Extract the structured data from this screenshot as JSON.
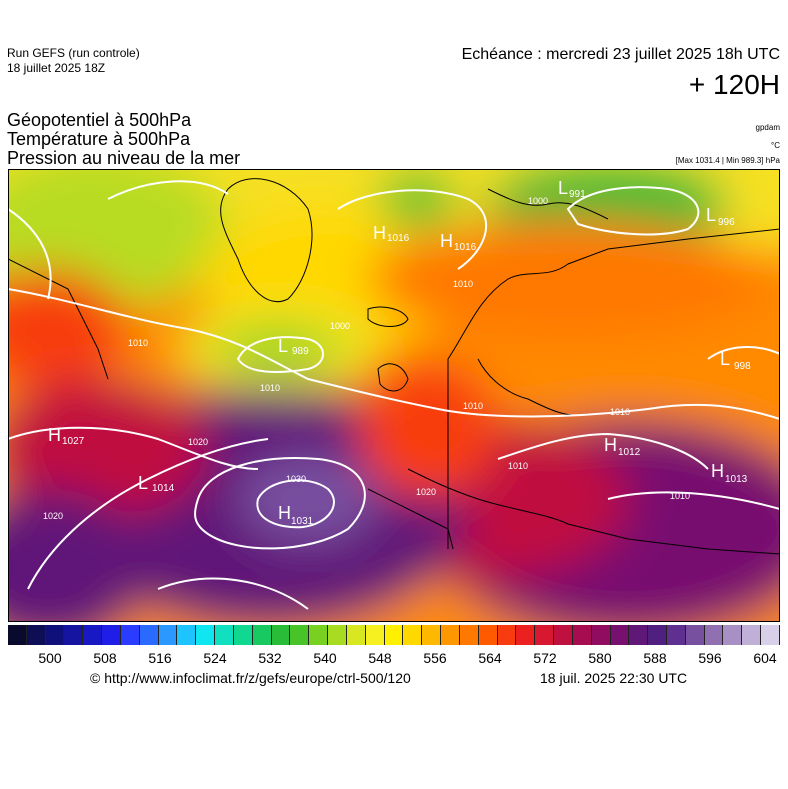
{
  "header": {
    "run_label": "Run GEFS (run controle)",
    "run_date": "18 juillet 2025 18Z",
    "echeance": "Echéance : mercredi 23 juillet 2025 18h UTC",
    "lead_time": "+ 120H"
  },
  "parameters": {
    "geopotential": "Géopotentiel à 500hPa",
    "temperature": "Température à 500hPa",
    "pressure": "Pression au niveau de la mer"
  },
  "units": {
    "geopotential": "gpdam",
    "temperature": "°C",
    "pressure": "[Max 1031.4 | Min 989.3] hPa"
  },
  "map": {
    "pressure_centers": [
      {
        "type": "H",
        "value": "1016"
      },
      {
        "type": "H",
        "value": "1016"
      },
      {
        "type": "L",
        "value": "991"
      },
      {
        "type": "L",
        "value": "996"
      },
      {
        "type": "L",
        "value": "989"
      },
      {
        "type": "L",
        "value": "998"
      },
      {
        "type": "H",
        "value": "1027"
      },
      {
        "type": "L",
        "value": "1014"
      },
      {
        "type": "H",
        "value": "1031"
      },
      {
        "type": "H",
        "value": "1012"
      },
      {
        "type": "H",
        "value": "1013"
      }
    ],
    "isobar_labels": [
      "1010",
      "1020",
      "1030",
      "1000",
      "1010",
      "1010",
      "1010",
      "1020",
      "1020",
      "1010",
      "1010",
      "1010",
      "1000"
    ]
  },
  "colorbar": {
    "colors": [
      "#0a0a2e",
      "#0e0e55",
      "#10107a",
      "#1414a0",
      "#1818c4",
      "#1e1ee8",
      "#2a3cff",
      "#2a6aff",
      "#2a98ff",
      "#1ec4ff",
      "#10e6f0",
      "#10e0c0",
      "#10d890",
      "#18c860",
      "#28bc38",
      "#48c428",
      "#78d020",
      "#a8dc20",
      "#d8e820",
      "#f6f020",
      "#fff000",
      "#ffd800",
      "#ffb800",
      "#ff9800",
      "#ff7800",
      "#ff5a00",
      "#f83c10",
      "#ec2020",
      "#d81830",
      "#c01040",
      "#a80c50",
      "#900c60",
      "#781070",
      "#601878",
      "#502080",
      "#603090",
      "#7850a0",
      "#9070b0",
      "#a890c4",
      "#c0b0d8",
      "#d8d0e8"
    ],
    "ticks": [
      "500",
      "508",
      "516",
      "524",
      "532",
      "540",
      "548",
      "556",
      "564",
      "572",
      "580",
      "588",
      "596",
      "604"
    ]
  },
  "footer": {
    "copyright": "© http://www.infoclimat.fr/z/gefs/europe/ctrl-500/120",
    "timestamp": "18 juil. 2025 22:30 UTC"
  }
}
